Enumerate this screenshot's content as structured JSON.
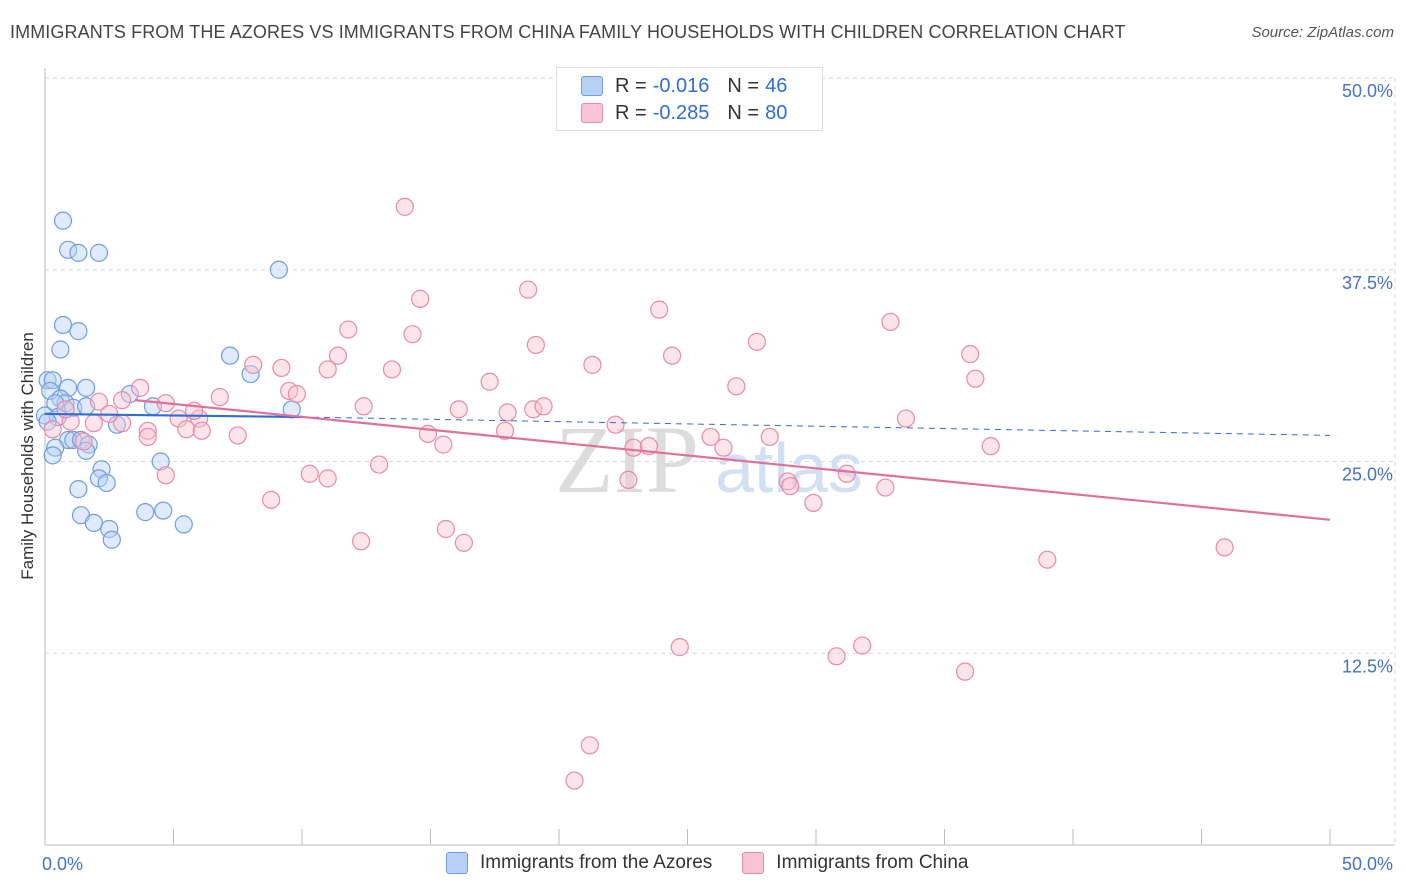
{
  "header": {
    "title": "IMMIGRANTS FROM THE AZORES VS IMMIGRANTS FROM CHINA FAMILY HOUSEHOLDS WITH CHILDREN CORRELATION CHART",
    "source": "Source: ZipAtlas.com"
  },
  "legend": {
    "rows": [
      {
        "r_label": "R =",
        "r_value": "-0.016",
        "n_label": "N =",
        "n_value": "46"
      },
      {
        "r_label": "R =",
        "r_value": "-0.285",
        "n_label": "N =",
        "n_value": "80"
      }
    ]
  },
  "watermark": {
    "zip": "ZIP",
    "atlas": "atlas"
  },
  "colors": {
    "azores_fill": "#b7d1f5",
    "azores_stroke": "#6f9de0",
    "azores_line": "#2f6ed3",
    "china_fill": "#f8c3d3",
    "china_stroke": "#e88aa8",
    "china_line": "#e0709a",
    "axis_text": "#4472c4",
    "grid": "#d6d6d6"
  },
  "chart_data": {
    "type": "scatter",
    "title": "IMMIGRANTS FROM THE AZORES VS IMMIGRANTS FROM CHINA FAMILY HOUSEHOLDS WITH CHILDREN CORRELATION CHART",
    "xlabel": "",
    "ylabel": "Family Households with Children",
    "xlim": [
      0,
      50
    ],
    "ylim": [
      0,
      50
    ],
    "x_tick_labels": [
      "0.0%",
      "50.0%"
    ],
    "y_ticks": [
      12.5,
      25.0,
      37.5,
      50.0
    ],
    "y_tick_labels": [
      "12.5%",
      "25.0%",
      "37.5%",
      "50.0%"
    ],
    "grid": true,
    "legend_placement": "top-center",
    "series": [
      {
        "name": "Immigrants from the Azores",
        "r": -0.016,
        "n": 46,
        "trend": {
          "x": [
            0,
            10
          ],
          "y": [
            28.1,
            27.9
          ],
          "dashed_to_x": 50,
          "dashed_end_y": 26.7
        },
        "points": [
          [
            0.7,
            40.7
          ],
          [
            0.9,
            38.8
          ],
          [
            2.1,
            38.6
          ],
          [
            1.3,
            38.6
          ],
          [
            9.1,
            37.5
          ],
          [
            0.7,
            33.9
          ],
          [
            1.3,
            33.5
          ],
          [
            0.6,
            32.3
          ],
          [
            7.2,
            31.9
          ],
          [
            8.0,
            30.7
          ],
          [
            0.1,
            30.3
          ],
          [
            0.3,
            30.3
          ],
          [
            0.9,
            29.8
          ],
          [
            1.6,
            29.8
          ],
          [
            0.2,
            29.6
          ],
          [
            3.3,
            29.4
          ],
          [
            0.6,
            29.1
          ],
          [
            0.8,
            28.8
          ],
          [
            0.4,
            28.8
          ],
          [
            4.2,
            28.6
          ],
          [
            1.1,
            28.5
          ],
          [
            9.6,
            28.4
          ],
          [
            0.0,
            28.0
          ],
          [
            0.5,
            27.9
          ],
          [
            0.1,
            27.6
          ],
          [
            2.8,
            27.4
          ],
          [
            0.9,
            26.4
          ],
          [
            1.1,
            26.4
          ],
          [
            1.4,
            26.4
          ],
          [
            1.7,
            26.1
          ],
          [
            0.4,
            25.9
          ],
          [
            1.6,
            25.7
          ],
          [
            0.3,
            25.4
          ],
          [
            4.5,
            25.0
          ],
          [
            2.2,
            24.5
          ],
          [
            2.1,
            23.9
          ],
          [
            2.4,
            23.6
          ],
          [
            1.3,
            23.2
          ],
          [
            1.4,
            21.5
          ],
          [
            4.6,
            21.8
          ],
          [
            3.9,
            21.7
          ],
          [
            1.9,
            21.0
          ],
          [
            5.4,
            20.9
          ],
          [
            2.5,
            20.6
          ],
          [
            2.6,
            19.9
          ],
          [
            1.6,
            28.6
          ]
        ]
      },
      {
        "name": "Immigrants from China",
        "r": -0.285,
        "n": 80,
        "trend": {
          "x": [
            3.5,
            50
          ],
          "y": [
            29.0,
            21.2
          ]
        },
        "points": [
          [
            14.0,
            41.6
          ],
          [
            18.8,
            36.2
          ],
          [
            14.6,
            35.6
          ],
          [
            23.9,
            34.9
          ],
          [
            32.9,
            34.1
          ],
          [
            11.8,
            33.6
          ],
          [
            14.3,
            33.3
          ],
          [
            19.1,
            32.6
          ],
          [
            27.7,
            32.8
          ],
          [
            11.4,
            31.9
          ],
          [
            24.4,
            31.9
          ],
          [
            36.0,
            32.0
          ],
          [
            8.1,
            31.3
          ],
          [
            9.2,
            31.1
          ],
          [
            11.0,
            31.0
          ],
          [
            13.5,
            31.0
          ],
          [
            21.3,
            31.3
          ],
          [
            36.2,
            30.4
          ],
          [
            17.3,
            30.2
          ],
          [
            26.9,
            29.9
          ],
          [
            9.5,
            29.6
          ],
          [
            9.8,
            29.4
          ],
          [
            3.7,
            29.8
          ],
          [
            6.8,
            29.2
          ],
          [
            3.0,
            29.0
          ],
          [
            2.1,
            28.9
          ],
          [
            4.7,
            28.8
          ],
          [
            12.4,
            28.6
          ],
          [
            16.1,
            28.4
          ],
          [
            19.0,
            28.4
          ],
          [
            18.0,
            28.2
          ],
          [
            19.4,
            28.6
          ],
          [
            33.5,
            27.8
          ],
          [
            5.2,
            27.8
          ],
          [
            6.0,
            27.8
          ],
          [
            3.0,
            27.5
          ],
          [
            4.0,
            27.0
          ],
          [
            5.5,
            27.1
          ],
          [
            6.1,
            27.0
          ],
          [
            1.0,
            27.6
          ],
          [
            0.3,
            27.1
          ],
          [
            14.9,
            26.8
          ],
          [
            17.9,
            27.0
          ],
          [
            22.2,
            27.4
          ],
          [
            25.9,
            26.6
          ],
          [
            28.2,
            26.6
          ],
          [
            4.0,
            26.6
          ],
          [
            1.5,
            26.3
          ],
          [
            7.5,
            26.7
          ],
          [
            15.5,
            26.1
          ],
          [
            22.9,
            25.9
          ],
          [
            23.5,
            26.0
          ],
          [
            26.4,
            25.9
          ],
          [
            36.8,
            26.0
          ],
          [
            13.0,
            24.8
          ],
          [
            4.7,
            24.1
          ],
          [
            10.3,
            24.2
          ],
          [
            11.0,
            23.9
          ],
          [
            22.7,
            23.8
          ],
          [
            28.9,
            23.7
          ],
          [
            29.0,
            23.4
          ],
          [
            31.2,
            24.2
          ],
          [
            32.7,
            23.3
          ],
          [
            8.8,
            22.5
          ],
          [
            29.9,
            22.3
          ],
          [
            15.6,
            20.6
          ],
          [
            12.3,
            19.8
          ],
          [
            16.3,
            19.7
          ],
          [
            45.9,
            19.4
          ],
          [
            39.0,
            18.6
          ],
          [
            24.7,
            12.9
          ],
          [
            31.8,
            13.0
          ],
          [
            30.8,
            12.3
          ],
          [
            35.8,
            11.3
          ],
          [
            21.2,
            6.5
          ],
          [
            20.6,
            4.2
          ],
          [
            0.8,
            28.4
          ],
          [
            1.9,
            27.5
          ],
          [
            5.8,
            28.3
          ],
          [
            2.5,
            28.1
          ]
        ]
      }
    ]
  },
  "bottom_legend": {
    "items": [
      "Immigrants from the Azores",
      "Immigrants from China"
    ]
  }
}
